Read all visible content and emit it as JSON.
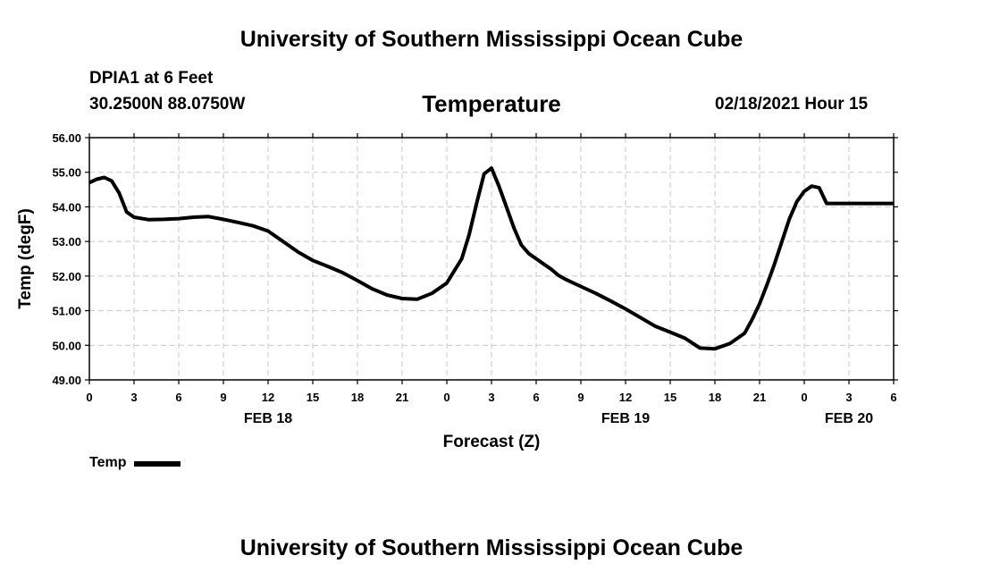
{
  "page": {
    "top_title": "University of Southern Mississippi Ocean Cube",
    "bottom_title": "University of Southern Mississippi Ocean Cube",
    "station": "DPIA1 at 6 Feet",
    "coordinates": "30.2500N 88.0750W",
    "datetime": "02/18/2021 Hour 15"
  },
  "chart_data": {
    "type": "line",
    "title": "Temperature",
    "xlabel": "Forecast (Z)",
    "ylabel": "Temp (degF)",
    "ylim": [
      49,
      56
    ],
    "xlim": [
      0,
      54
    ],
    "y_ticks": [
      "49.00",
      "50.00",
      "51.00",
      "52.00",
      "53.00",
      "54.00",
      "55.00",
      "56.00"
    ],
    "x_ticks": [
      "0",
      "3",
      "6",
      "9",
      "12",
      "15",
      "18",
      "21",
      "0",
      "3",
      "6",
      "9",
      "12",
      "15",
      "18",
      "21",
      "0",
      "3",
      "6"
    ],
    "date_labels": [
      {
        "label": "FEB 18",
        "hour_offset": 12
      },
      {
        "label": "FEB 19",
        "hour_offset": 36
      },
      {
        "label": "FEB 20",
        "hour_offset": 51
      }
    ],
    "grid": true,
    "legend_position": "bottom-left",
    "series": [
      {
        "name": "Temp",
        "color": "#000000",
        "x": [
          0,
          0.5,
          1,
          1.5,
          2,
          2.5,
          3,
          4,
          5,
          6,
          7,
          8,
          9,
          10,
          11,
          12,
          13,
          14,
          15,
          16,
          17,
          18,
          19,
          20,
          21,
          22,
          23,
          24,
          25,
          25.5,
          26,
          26.5,
          27,
          27.5,
          28,
          28.5,
          29,
          29.5,
          30,
          30.5,
          31,
          31.5,
          32,
          33,
          34,
          35,
          36,
          37,
          38,
          39,
          40,
          41,
          42,
          43,
          44,
          44.5,
          45,
          45.5,
          46,
          46.5,
          47,
          47.5,
          48,
          48.5,
          49,
          49.5,
          50,
          50.5,
          51,
          51.5,
          52,
          52.5,
          53,
          53.5,
          54
        ],
        "y": [
          54.7,
          54.8,
          54.85,
          54.75,
          54.4,
          53.85,
          53.7,
          53.63,
          53.64,
          53.66,
          53.7,
          53.72,
          53.64,
          53.55,
          53.45,
          53.3,
          53.0,
          52.7,
          52.45,
          52.28,
          52.1,
          51.87,
          51.63,
          51.45,
          51.35,
          51.33,
          51.5,
          51.8,
          52.5,
          53.2,
          54.1,
          54.95,
          55.12,
          54.6,
          54.0,
          53.4,
          52.9,
          52.65,
          52.5,
          52.35,
          52.2,
          52.02,
          51.9,
          51.7,
          51.5,
          51.28,
          51.05,
          50.8,
          50.55,
          50.38,
          50.2,
          49.92,
          49.9,
          50.05,
          50.35,
          50.75,
          51.2,
          51.75,
          52.35,
          53.0,
          53.65,
          54.15,
          54.45,
          54.6,
          54.55,
          54.1,
          54.1,
          54.1,
          54.1,
          54.1,
          54.1,
          54.1,
          54.1,
          54.1,
          54.1
        ]
      }
    ]
  }
}
